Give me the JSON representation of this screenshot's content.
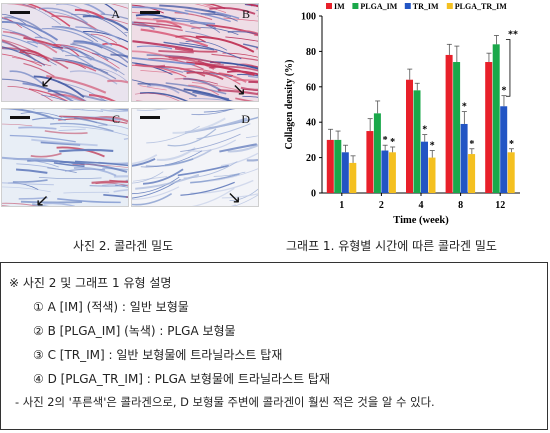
{
  "photos": {
    "panels": [
      {
        "letter": "A",
        "tone": "red-blue"
      },
      {
        "letter": "B",
        "tone": "red-blue-dense"
      },
      {
        "letter": "C",
        "tone": "blue-light"
      },
      {
        "letter": "D",
        "tone": "sparse-blue"
      }
    ],
    "caption": "사진 2. 콜라겐 밀도"
  },
  "chart_caption": "그래프 1. 유형별 시간에 따른 콜라겐 밀도",
  "chart_data": {
    "type": "bar",
    "categories": [
      "1",
      "2",
      "4",
      "8",
      "12"
    ],
    "xlabel": "Time (week)",
    "ylabel": "Collagen density (%)",
    "ylim": [
      0,
      100
    ],
    "yticks": [
      "0",
      "20",
      "40",
      "60",
      "80",
      "100"
    ],
    "legend_position": "top",
    "series": [
      {
        "name": "IM",
        "color": "#e8202a",
        "values": [
          30,
          35,
          64,
          78,
          74
        ],
        "errors": [
          6,
          7,
          6,
          6,
          5
        ]
      },
      {
        "name": "PLGA_IM",
        "color": "#1aa84a",
        "values": [
          30,
          45,
          58,
          74,
          84
        ],
        "errors": [
          5,
          7,
          4,
          9,
          5
        ]
      },
      {
        "name": "TR_IM",
        "color": "#2255c4",
        "values": [
          23,
          24,
          29,
          39,
          49
        ],
        "errors": [
          4,
          3,
          4,
          7,
          6
        ]
      },
      {
        "name": "PLGA_TR_IM",
        "color": "#f4c020",
        "values": [
          17,
          23,
          20,
          22,
          23
        ],
        "errors": [
          4,
          3,
          4,
          3,
          2
        ]
      }
    ],
    "markers": [
      {
        "category": "2",
        "series": "TR_IM",
        "text": "*"
      },
      {
        "category": "2",
        "series": "PLGA_TR_IM",
        "text": "*"
      },
      {
        "category": "4",
        "series": "TR_IM",
        "text": "*"
      },
      {
        "category": "4",
        "series": "PLGA_TR_IM",
        "text": "*"
      },
      {
        "category": "8",
        "series": "TR_IM",
        "text": "*"
      },
      {
        "category": "8",
        "series": "PLGA_TR_IM",
        "text": "*"
      },
      {
        "category": "12",
        "series": "TR_IM",
        "text": "*"
      },
      {
        "category": "12",
        "series": "PLGA_TR_IM",
        "text": "*"
      }
    ],
    "bracket": {
      "category": "12",
      "from": "PLGA_IM",
      "to": "TR_IM",
      "text": "**"
    }
  },
  "description": {
    "title": "※ 사진 2 및 그래프 1 유형 설명",
    "items": [
      "① A [IM] (적색) : 일반 보형물",
      "② B [PLGA_IM] (녹색) : PLGA 보형물",
      "③ C [TR_IM] : 일반 보형물에 트라닐라스트 탑재",
      "④ D [PLGA_TR_IM] : PLGA 보형물에 트라닐라스트 탑재"
    ],
    "note": "- 사진 2의 '푸른색'은 콜라겐으로, D 보형물 주변에 콜라겐이 훨씬 적은 것을 알 수 있다."
  }
}
